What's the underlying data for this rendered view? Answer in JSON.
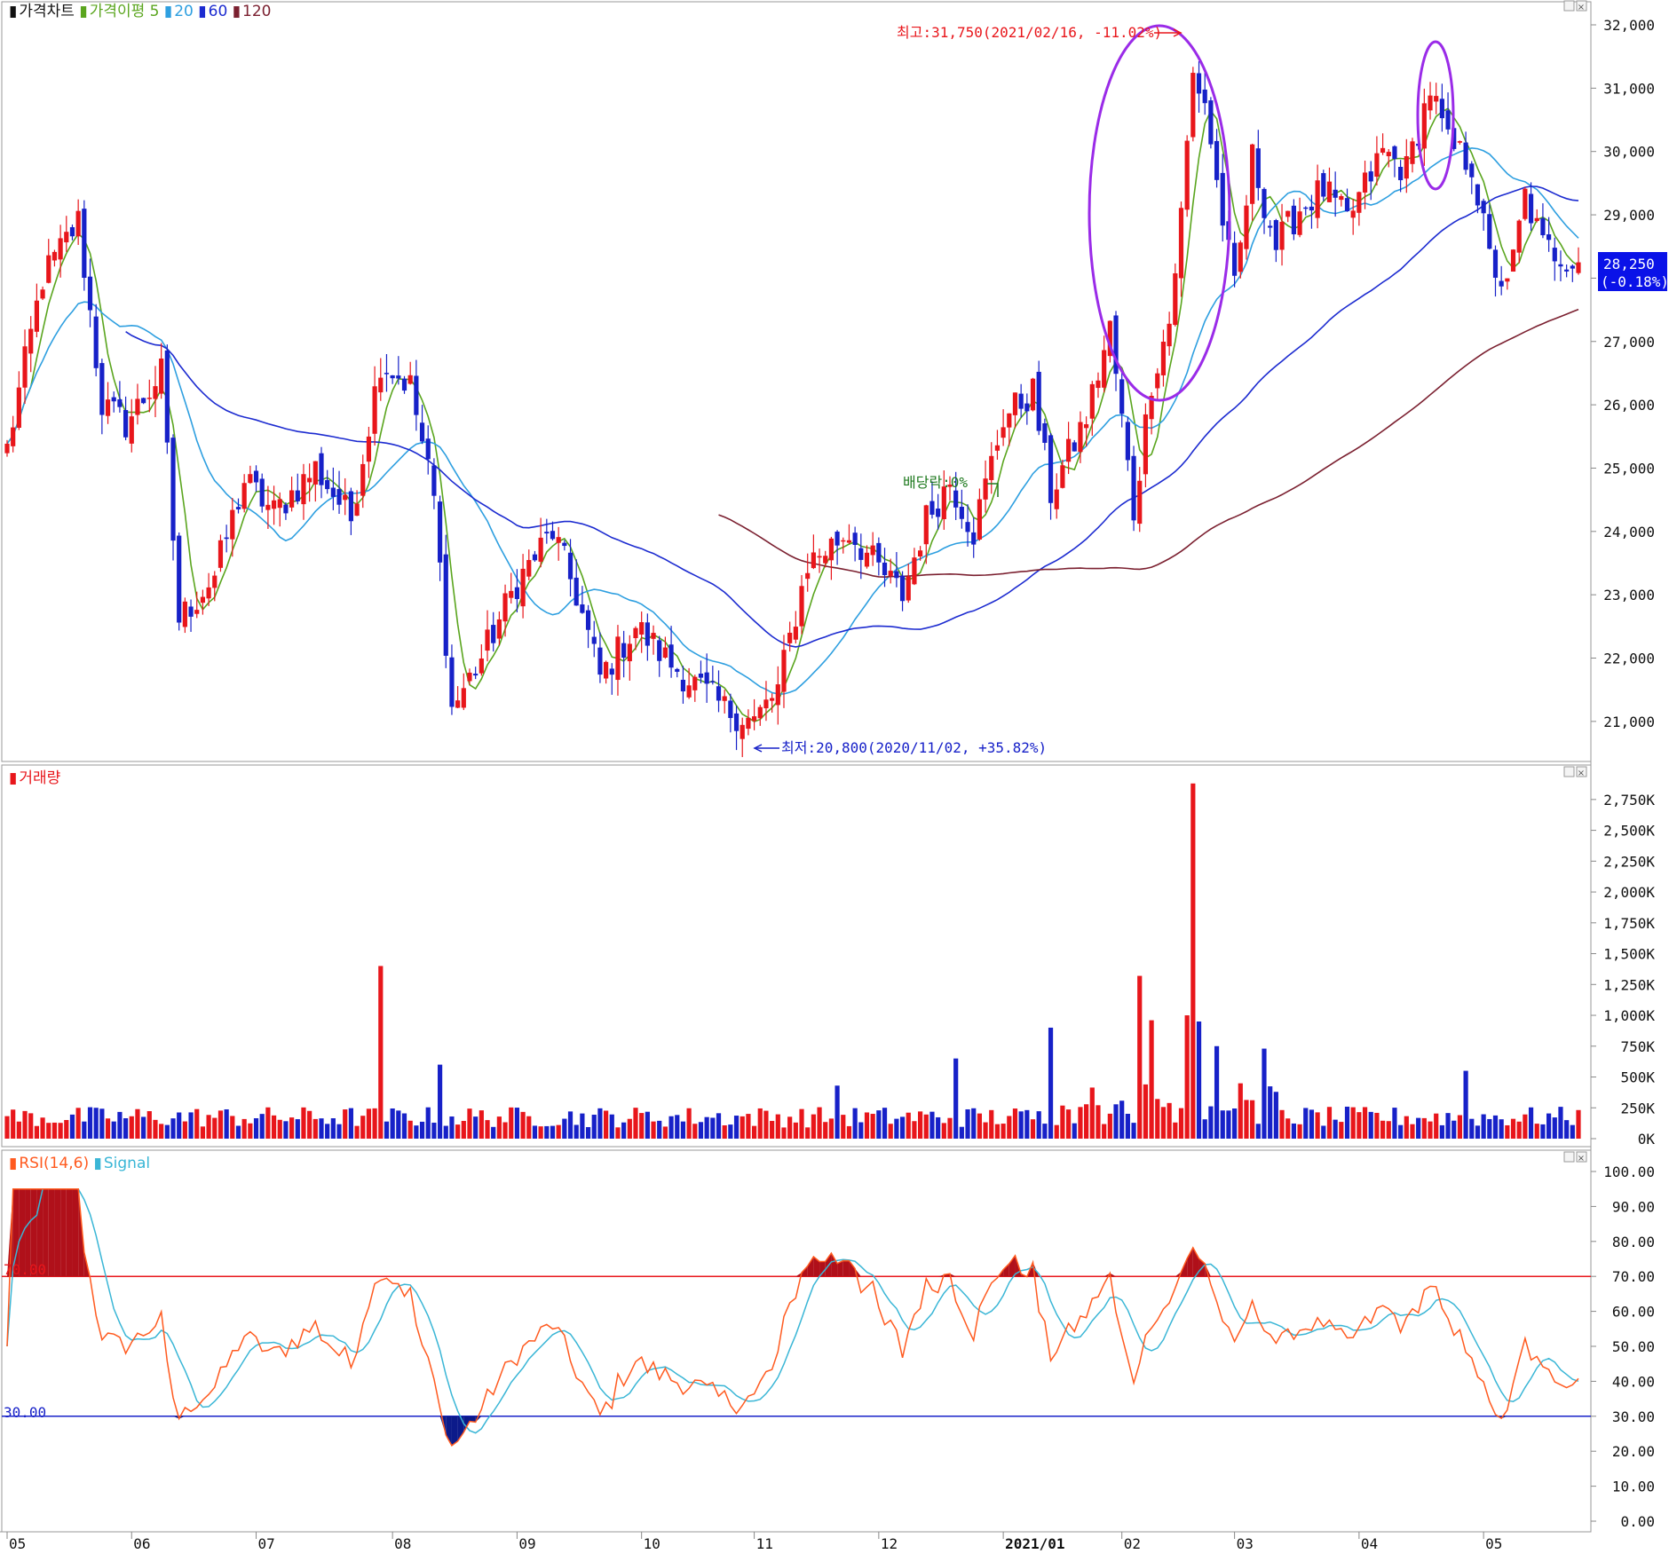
{
  "colors": {
    "up": "#e8161b",
    "down": "#1721c8",
    "ma5": "#5aa51e",
    "ma20": "#2e9fe0",
    "ma60": "#1c2bd0",
    "ma120": "#7b2030",
    "rsi": "#ff5a1f",
    "signal": "#3ab6d6",
    "line70": "#e8161b",
    "line30": "#1721c8",
    "price_box": "#0a12e8",
    "annotation_red": "#e8161b",
    "annotation_blue": "#1721c8",
    "annotation_green": "#1f7a1f",
    "ellipse": "#9a2be8"
  },
  "price_panel": {
    "legend": [
      {
        "marker": "▮",
        "text": "가격차트",
        "color": "#111111"
      },
      {
        "marker": "▮",
        "text": "가격이평 5",
        "color": "#5aa51e"
      },
      {
        "marker": "▮",
        "text": "20",
        "color": "#2e9fe0"
      },
      {
        "marker": "▮",
        "text": "60",
        "color": "#1c2bd0"
      },
      {
        "marker": "▮",
        "text": "120",
        "color": "#7b2030"
      }
    ],
    "y_ticks": [
      "32,000",
      "31,000",
      "30,000",
      "29,000",
      "28,000",
      "27,000",
      "26,000",
      "25,000",
      "24,000",
      "23,000",
      "22,000",
      "21,000"
    ],
    "current_price": "28,250",
    "current_change": "(-0.18%)",
    "high_label": "최고:31,750(2021/02/16, -11.02%)",
    "low_label": "최저:20,800(2020/11/02, +35.82%)",
    "dividend_label": "배당락:0%"
  },
  "volume_panel": {
    "legend": [
      {
        "marker": "▮",
        "text": "거래량",
        "color": "#e8161b"
      }
    ],
    "y_ticks": [
      "2,750K",
      "2,500K",
      "2,250K",
      "2,000K",
      "1,750K",
      "1,500K",
      "1,250K",
      "1,000K",
      "750K",
      "500K",
      "250K",
      "0K"
    ]
  },
  "rsi_panel": {
    "legend": [
      {
        "marker": "▮",
        "text": "RSI(14,6)",
        "color": "#ff5a1f"
      },
      {
        "marker": "▮",
        "text": "Signal",
        "color": "#3ab6d6"
      }
    ],
    "y_ticks": [
      "100.00",
      "90.00",
      "80.00",
      "70.00",
      "60.00",
      "50.00",
      "40.00",
      "30.00",
      "20.00",
      "10.00",
      "0.00"
    ],
    "level_high": "70.00",
    "level_low": "30.00"
  },
  "x_axis": {
    "labels": [
      "05",
      "06",
      "07",
      "08",
      "09",
      "10",
      "11",
      "12",
      "2021/01",
      "02",
      "03",
      "04",
      "05"
    ]
  },
  "chart_data": {
    "type": "candlestick",
    "price_ylim": [
      20900,
      32000
    ],
    "volume_ylim": [
      0,
      2900
    ],
    "rsi_ylim": [
      0,
      100
    ],
    "month_starts": [
      0,
      21,
      42,
      65,
      86,
      107,
      126,
      147,
      168,
      188,
      207,
      228,
      249
    ],
    "monthly_path": [
      {
        "i": 0,
        "p": 25300
      },
      {
        "i": 6,
        "p": 28000
      },
      {
        "i": 12,
        "p": 28900
      },
      {
        "i": 16,
        "p": 26000
      },
      {
        "i": 20,
        "p": 25700
      },
      {
        "i": 26,
        "p": 26500
      },
      {
        "i": 29,
        "p": 22600
      },
      {
        "i": 35,
        "p": 23300
      },
      {
        "i": 40,
        "p": 24800
      },
      {
        "i": 45,
        "p": 24300
      },
      {
        "i": 52,
        "p": 25000
      },
      {
        "i": 58,
        "p": 24200
      },
      {
        "i": 63,
        "p": 26700
      },
      {
        "i": 68,
        "p": 26300
      },
      {
        "i": 72,
        "p": 24500
      },
      {
        "i": 75,
        "p": 21200
      },
      {
        "i": 80,
        "p": 22000
      },
      {
        "i": 86,
        "p": 23200
      },
      {
        "i": 92,
        "p": 24000
      },
      {
        "i": 96,
        "p": 23000
      },
      {
        "i": 100,
        "p": 21700
      },
      {
        "i": 106,
        "p": 22500
      },
      {
        "i": 112,
        "p": 21900
      },
      {
        "i": 121,
        "p": 21200
      },
      {
        "i": 126,
        "p": 21000
      },
      {
        "i": 130,
        "p": 21500
      },
      {
        "i": 135,
        "p": 23500
      },
      {
        "i": 142,
        "p": 24000
      },
      {
        "i": 147,
        "p": 23400
      },
      {
        "i": 151,
        "p": 23000
      },
      {
        "i": 155,
        "p": 24200
      },
      {
        "i": 159,
        "p": 24800
      },
      {
        "i": 163,
        "p": 24000
      },
      {
        "i": 168,
        "p": 25800
      },
      {
        "i": 173,
        "p": 26200
      },
      {
        "i": 176,
        "p": 24600
      },
      {
        "i": 182,
        "p": 25800
      },
      {
        "i": 186,
        "p": 27200
      },
      {
        "i": 190,
        "p": 24300
      },
      {
        "i": 193,
        "p": 26400
      },
      {
        "i": 196,
        "p": 27300
      },
      {
        "i": 198,
        "p": 29000
      },
      {
        "i": 200,
        "p": 31200
      },
      {
        "i": 202,
        "p": 30800
      },
      {
        "i": 204,
        "p": 29500
      },
      {
        "i": 207,
        "p": 27800
      },
      {
        "i": 210,
        "p": 29900
      },
      {
        "i": 214,
        "p": 28500
      },
      {
        "i": 218,
        "p": 29100
      },
      {
        "i": 222,
        "p": 29400
      },
      {
        "i": 226,
        "p": 28900
      },
      {
        "i": 232,
        "p": 30000
      },
      {
        "i": 236,
        "p": 29700
      },
      {
        "i": 240,
        "p": 31000
      },
      {
        "i": 243,
        "p": 30100
      },
      {
        "i": 247,
        "p": 29800
      },
      {
        "i": 250,
        "p": 28300
      },
      {
        "i": 253,
        "p": 27800
      },
      {
        "i": 256,
        "p": 29300
      },
      {
        "i": 259,
        "p": 28500
      },
      {
        "i": 265,
        "p": 28250
      }
    ],
    "volume_spikes": [
      {
        "i": 63,
        "v": 1400
      },
      {
        "i": 73,
        "v": 600
      },
      {
        "i": 140,
        "v": 430
      },
      {
        "i": 160,
        "v": 650
      },
      {
        "i": 176,
        "v": 900
      },
      {
        "i": 191,
        "v": 1320
      },
      {
        "i": 193,
        "v": 960
      },
      {
        "i": 200,
        "v": 2880
      },
      {
        "i": 199,
        "v": 1000
      },
      {
        "i": 201,
        "v": 950
      },
      {
        "i": 204,
        "v": 750
      },
      {
        "i": 212,
        "v": 730
      },
      {
        "i": 246,
        "v": 550
      }
    ],
    "high_point": {
      "date": "2021/02/16",
      "price": 31750,
      "pct": -11.02
    },
    "low_point": {
      "date": "2020/11/02",
      "price": 20800,
      "pct": 35.82
    },
    "last_price": 28250,
    "last_change_pct": -0.18,
    "ma_periods": [
      5,
      20,
      60,
      120
    ],
    "rsi_period": 14,
    "signal_period": 6,
    "rsi_levels": [
      70,
      30
    ]
  }
}
